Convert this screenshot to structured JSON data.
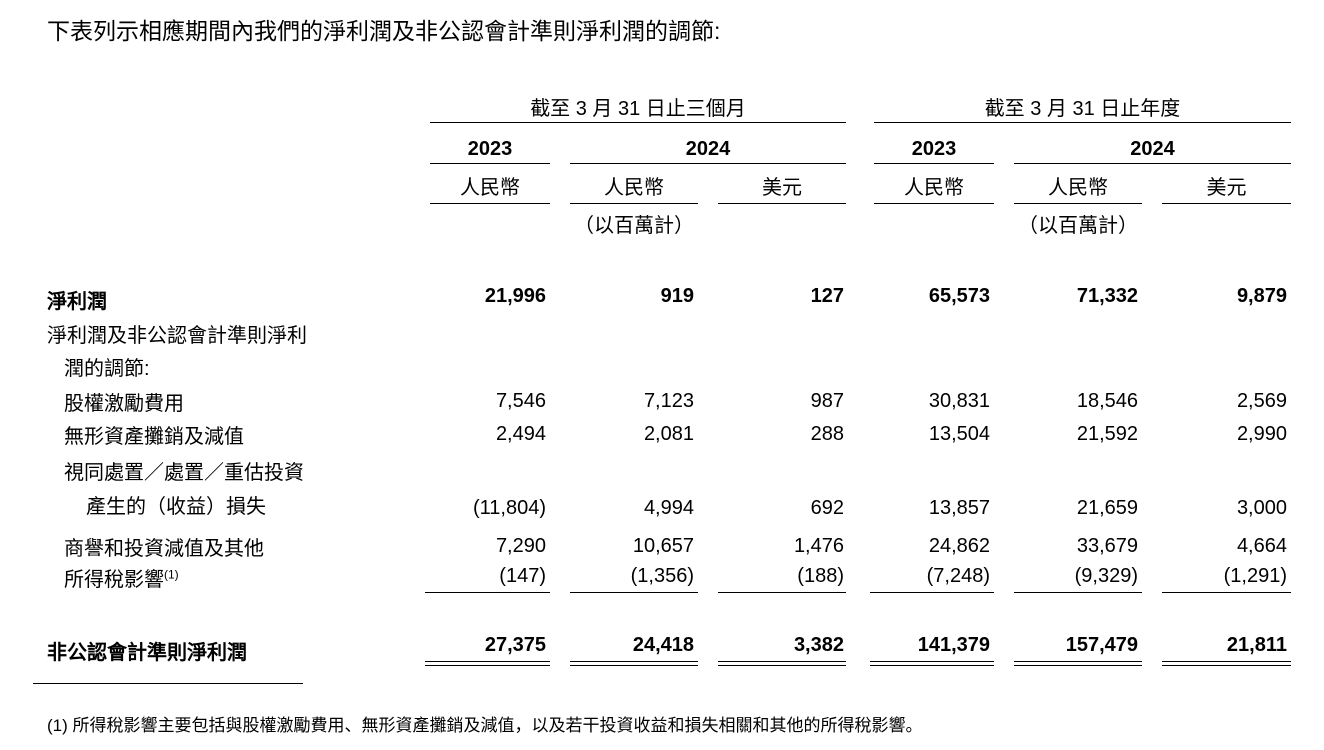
{
  "intro": "下表列示相應期間內我們的淨利潤及非公認會計準則淨利潤的調節:",
  "headers": {
    "group1": "截至 3 月 31 日止三個月",
    "group2": "截至 3 月 31 日止年度",
    "years": [
      "2023",
      "2024",
      "2023",
      "2024"
    ],
    "currency_rmb": "人民幣",
    "currency_usd": "美元",
    "unit": "（以百萬計）"
  },
  "rows": [
    {
      "label": "淨利潤",
      "bold": true,
      "values": [
        "21,996",
        "919",
        "127",
        "65,573",
        "71,332",
        "9,879"
      ]
    },
    {
      "label": "淨利潤及非公認會計準則淨利",
      "label2": "潤的調節:",
      "values": []
    },
    {
      "label": "股權激勵費用",
      "values": [
        "7,546",
        "7,123",
        "987",
        "30,831",
        "18,546",
        "2,569"
      ]
    },
    {
      "label": "無形資產攤銷及減值",
      "values": [
        "2,494",
        "2,081",
        "288",
        "13,504",
        "21,592",
        "2,990"
      ]
    },
    {
      "label": "視同處置／處置／重估投資",
      "label2": "產生的（收益）損失",
      "values": [
        "(11,804)",
        "4,994",
        "692",
        "13,857",
        "21,659",
        "3,000"
      ]
    },
    {
      "label": "商譽和投資減值及其他",
      "values": [
        "7,290",
        "10,657",
        "1,476",
        "24,862",
        "33,679",
        "4,664"
      ]
    },
    {
      "label": "所得稅影響",
      "sup": "(1)",
      "values": [
        "(147)",
        "(1,356)",
        "(188)",
        "(7,248)",
        "(9,329)",
        "(1,291)"
      ]
    },
    {
      "label": "非公認會計準則淨利潤",
      "bold": true,
      "values": [
        "27,375",
        "24,418",
        "3,382",
        "141,379",
        "157,479",
        "21,811"
      ]
    }
  ],
  "footnote": "(1) 所得稅影響主要包括與股權激勵費用、無形資產攤銷及減值，以及若干投資收益和損失相關和其他的所得稅影響。"
}
